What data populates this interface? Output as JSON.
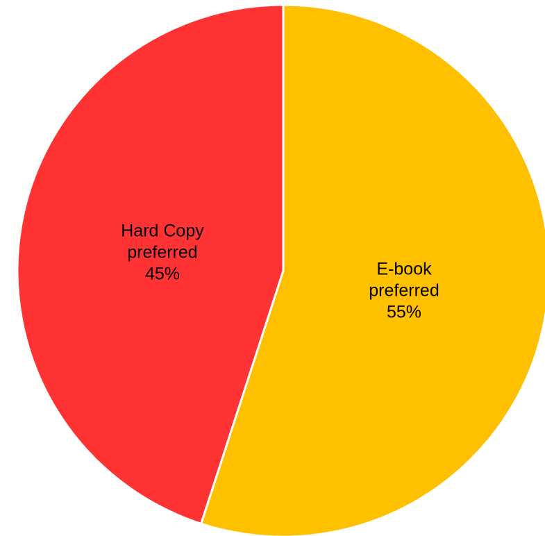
{
  "chart_data": {
    "type": "pie",
    "categories": [
      "E-book preferred",
      "Hard Copy preferred"
    ],
    "values": [
      55,
      45
    ],
    "slices": [
      {
        "line1": "E-book",
        "line2": "preferred",
        "pct": "55%",
        "value": 55,
        "color": "#FFC000"
      },
      {
        "line1": "Hard Copy",
        "line2": "preferred",
        "pct": "45%",
        "value": 45,
        "color": "#FF3333"
      }
    ],
    "start_angle_deg": 0,
    "direction": "clockwise",
    "legend": "none",
    "labels": "inside"
  }
}
